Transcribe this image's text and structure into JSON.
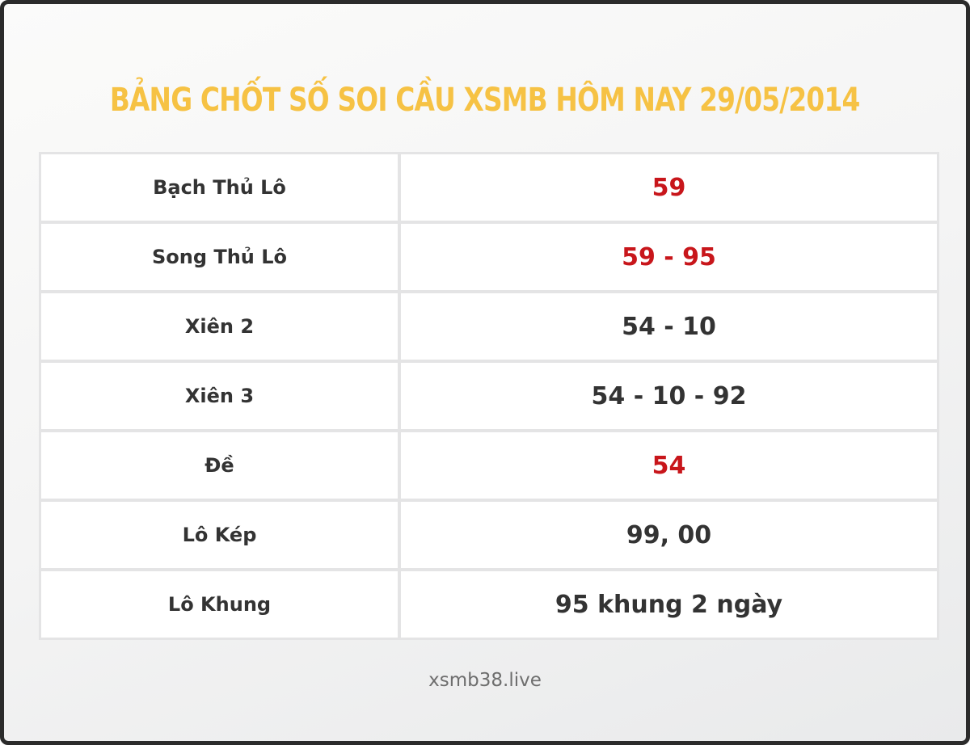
{
  "title": "BẢNG CHỐT SỐ SOI CẦU XSMB HÔM NAY 29/05/2014",
  "colors": {
    "title_yellow": "#f6c244",
    "highlight_red": "#c8161b",
    "text_dark": "#333333",
    "frame_border": "#2b2b2b"
  },
  "table": {
    "rows": [
      {
        "label": "Bạch Thủ Lô",
        "value": "59",
        "highlight": true
      },
      {
        "label": "Song Thủ Lô",
        "value": "59 - 95",
        "highlight": true
      },
      {
        "label": "Xiên 2",
        "value": "54 - 10",
        "highlight": false
      },
      {
        "label": "Xiên 3",
        "value": "54 - 10 - 92",
        "highlight": false
      },
      {
        "label": "Đề",
        "value": "54",
        "highlight": true
      },
      {
        "label": "Lô Kép",
        "value": "99, 00",
        "highlight": false
      },
      {
        "label": "Lô Khung",
        "value": "95 khung 2 ngày",
        "highlight": false
      }
    ]
  },
  "footer": {
    "site": "xsmb38.live"
  }
}
